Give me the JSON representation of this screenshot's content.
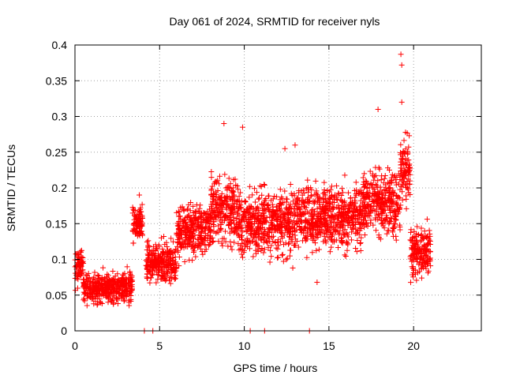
{
  "chart_data": {
    "type": "scatter",
    "title": "Day 061 of 2024, SRMTID for receiver nyls",
    "xlabel": "GPS time / hours",
    "ylabel": "SRMTID / TECUs",
    "xlim": [
      0,
      24
    ],
    "ylim": [
      0,
      0.4
    ],
    "xticks": [
      0,
      5,
      10,
      15,
      20
    ],
    "yticks": [
      0,
      0.05,
      0.1,
      0.15,
      0.2,
      0.25,
      0.3,
      0.35,
      0.4
    ],
    "xtick_labels": [
      "0",
      "5",
      "10",
      "15",
      "20"
    ],
    "ytick_labels": [
      "0",
      "0.05",
      "0.1",
      "0.15",
      "0.2",
      "0.25",
      "0.3",
      "0.35",
      "0.4"
    ],
    "grid": true,
    "marker": "+",
    "color": "#ff0000",
    "series_trend": {
      "description": "envelope of the scattered SRMTID values (hours, mean, spread)",
      "segments": [
        {
          "x": [
            0.0,
            0.5
          ],
          "mean": 0.09,
          "spread": 0.03
        },
        {
          "x": [
            0.5,
            3.4
          ],
          "mean": 0.06,
          "spread": 0.025
        },
        {
          "x": [
            3.4,
            4.0
          ],
          "mean": 0.15,
          "spread": 0.025
        },
        {
          "x": [
            4.2,
            6.0
          ],
          "mean": 0.095,
          "spread": 0.03
        },
        {
          "x": [
            6.0,
            8.0
          ],
          "mean": 0.14,
          "spread": 0.04
        },
        {
          "x": [
            8.0,
            9.5
          ],
          "mean": 0.17,
          "spread": 0.05
        },
        {
          "x": [
            9.5,
            13.0
          ],
          "mean": 0.15,
          "spread": 0.05
        },
        {
          "x": [
            13.0,
            17.0
          ],
          "mean": 0.16,
          "spread": 0.05
        },
        {
          "x": [
            17.0,
            19.2
          ],
          "mean": 0.18,
          "spread": 0.05
        },
        {
          "x": [
            19.2,
            19.8
          ],
          "mean": 0.22,
          "spread": 0.06
        },
        {
          "x": [
            19.8,
            21.0
          ],
          "mean": 0.11,
          "spread": 0.04
        }
      ]
    },
    "notable_points": [
      {
        "x": 19.25,
        "y": 0.387
      },
      {
        "x": 19.3,
        "y": 0.372
      },
      {
        "x": 19.3,
        "y": 0.32
      },
      {
        "x": 17.9,
        "y": 0.31
      },
      {
        "x": 8.8,
        "y": 0.29
      },
      {
        "x": 9.9,
        "y": 0.285
      },
      {
        "x": 12.4,
        "y": 0.255
      },
      {
        "x": 13.0,
        "y": 0.26
      },
      {
        "x": 3.8,
        "y": 0.19
      },
      {
        "x": 14.3,
        "y": 0.068
      }
    ],
    "zero_points": [
      {
        "x": 4.1,
        "y": 0
      },
      {
        "x": 4.6,
        "y": 0
      },
      {
        "x": 10.35,
        "y": 0
      },
      {
        "x": 11.2,
        "y": 0
      },
      {
        "x": 13.85,
        "y": 0
      }
    ]
  }
}
